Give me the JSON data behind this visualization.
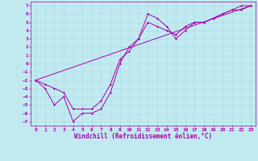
{
  "xlabel": "Windchill (Refroidissement éolien,°C)",
  "xlim": [
    -0.5,
    23.5
  ],
  "ylim": [
    -7.5,
    7.5
  ],
  "xticks": [
    0,
    1,
    2,
    3,
    4,
    5,
    6,
    7,
    8,
    9,
    10,
    11,
    12,
    13,
    14,
    15,
    16,
    17,
    18,
    19,
    20,
    21,
    22,
    23
  ],
  "yticks": [
    -7,
    -6,
    -5,
    -4,
    -3,
    -2,
    -1,
    0,
    1,
    2,
    3,
    4,
    5,
    6,
    7
  ],
  "bg_color": "#c0eaf0",
  "line_color": "#aa00aa",
  "grid_color": "#a8d8e0",
  "line1_x": [
    0,
    1,
    2,
    3,
    4,
    5,
    6,
    7,
    8,
    9,
    10,
    11,
    12,
    13,
    14,
    15,
    16,
    17,
    18,
    19,
    20,
    21,
    22,
    23
  ],
  "line1_y": [
    -2,
    -3,
    -5,
    -4,
    -7,
    -6,
    -6,
    -5.5,
    -3.5,
    0,
    2,
    3,
    6,
    5.5,
    4.5,
    3,
    4,
    5,
    5,
    5.5,
    6,
    6.5,
    6.5,
    7
  ],
  "line2_x": [
    0,
    1,
    2,
    3,
    4,
    5,
    6,
    7,
    8,
    9,
    10,
    11,
    12,
    13,
    14,
    15,
    16,
    17,
    18,
    19,
    20,
    21,
    22,
    23
  ],
  "line2_y": [
    -2,
    -2.5,
    -3,
    -3.5,
    -5.5,
    -5.5,
    -5.5,
    -4.5,
    -2.5,
    0.5,
    1.5,
    3,
    5,
    4.5,
    4,
    3.5,
    4.5,
    5,
    5,
    5.5,
    6,
    6.5,
    7,
    7
  ],
  "line3_x": [
    0,
    23
  ],
  "line3_y": [
    -2,
    7
  ],
  "marker": "D",
  "markersize": 1.5,
  "linewidth": 0.7,
  "tick_fontsize": 4.5,
  "xlabel_fontsize": 5.5
}
